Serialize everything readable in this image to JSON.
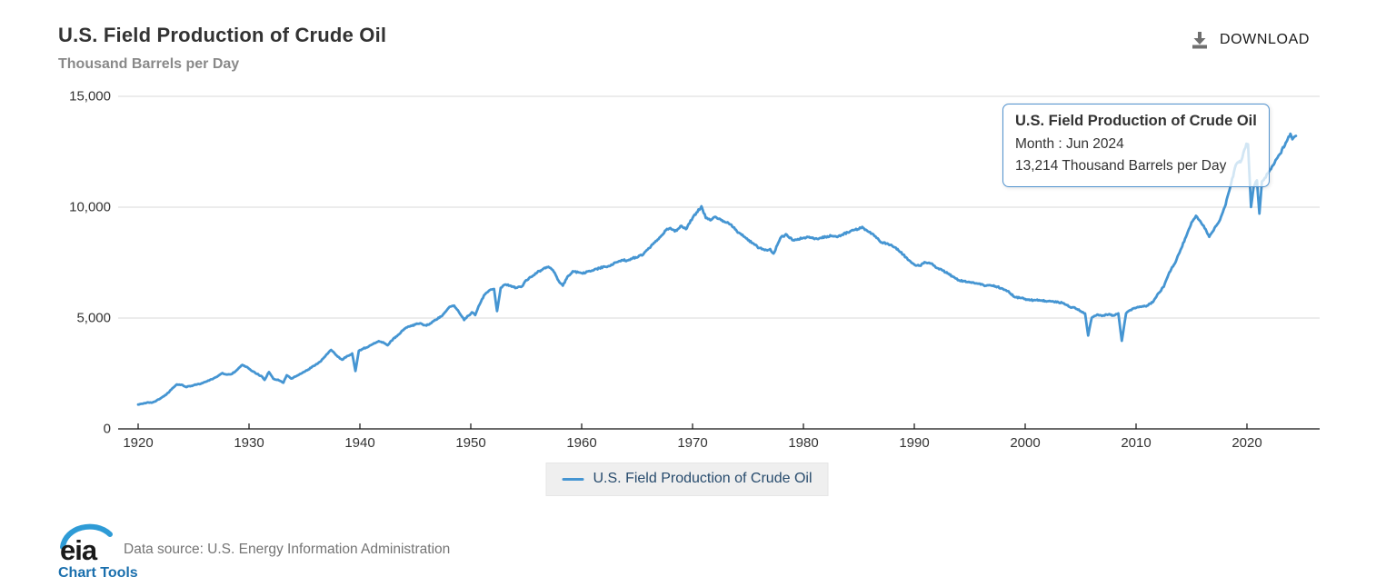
{
  "header": {
    "title": "U.S. Field Production of Crude Oil",
    "subtitle": "Thousand Barrels per Day",
    "download_label": "DOWNLOAD"
  },
  "tooltip": {
    "title": "U.S. Field Production of Crude Oil",
    "period_line": "Month : Jun 2024",
    "value_line": "13,214 Thousand Barrels per Day"
  },
  "legend": {
    "label": "U.S. Field Production of Crude Oil"
  },
  "footer": {
    "logo_text": "eia",
    "data_source": "Data source: U.S. Energy Information Administration",
    "chart_tools_label": "Chart Tools"
  },
  "colors": {
    "line": "#4595d2",
    "tooltip_border": "#5192ce",
    "grid": "#d8d8d8",
    "axis": "#111111",
    "legend_text": "#274b6d",
    "download_icon": "#6f6f6f",
    "logo_swoosh": "#2e9bd6"
  },
  "chart_data": {
    "type": "line",
    "title": "U.S. Field Production of Crude Oil",
    "xlabel": "",
    "ylabel": "Thousand Barrels per Day",
    "xlim": [
      1919.5,
      2026.5
    ],
    "ylim": [
      0,
      15000
    ],
    "grid": "horizontal",
    "legend_position": "bottom-center",
    "y_ticks": [
      {
        "value": 15000,
        "label": "15,000"
      },
      {
        "value": 10000,
        "label": "10,000"
      },
      {
        "value": 5000,
        "label": "5,000"
      },
      {
        "value": 0,
        "label": "0"
      }
    ],
    "x_ticks": [
      {
        "value": 1920,
        "label": "1920"
      },
      {
        "value": 1930,
        "label": "1930"
      },
      {
        "value": 1940,
        "label": "1940"
      },
      {
        "value": 1950,
        "label": "1950"
      },
      {
        "value": 1960,
        "label": "1960"
      },
      {
        "value": 1970,
        "label": "1970"
      },
      {
        "value": 1980,
        "label": "1980"
      },
      {
        "value": 1990,
        "label": "1990"
      },
      {
        "value": 2000,
        "label": "2000"
      },
      {
        "value": 2010,
        "label": "2010"
      },
      {
        "value": 2020,
        "label": "2020"
      }
    ],
    "series": [
      {
        "name": "U.S. Field Production of Crude Oil",
        "unit": "Thousand Barrels per Day",
        "frequency": "monthly",
        "last_point_label": "Jun 2024",
        "last_point_value": 13214,
        "points": [
          [
            1920.0,
            1100
          ],
          [
            1920.4,
            1130
          ],
          [
            1920.8,
            1190
          ],
          [
            1921.2,
            1180
          ],
          [
            1921.6,
            1250
          ],
          [
            1922.0,
            1370
          ],
          [
            1922.5,
            1530
          ],
          [
            1923.0,
            1780
          ],
          [
            1923.5,
            2010
          ],
          [
            1923.9,
            1990
          ],
          [
            1924.3,
            1890
          ],
          [
            1924.8,
            1940
          ],
          [
            1925.3,
            2000
          ],
          [
            1925.8,
            2060
          ],
          [
            1926.3,
            2180
          ],
          [
            1926.8,
            2280
          ],
          [
            1927.2,
            2380
          ],
          [
            1927.6,
            2520
          ],
          [
            1928.0,
            2450
          ],
          [
            1928.5,
            2490
          ],
          [
            1929.0,
            2700
          ],
          [
            1929.4,
            2890
          ],
          [
            1929.9,
            2760
          ],
          [
            1930.3,
            2600
          ],
          [
            1930.7,
            2480
          ],
          [
            1931.1,
            2390
          ],
          [
            1931.4,
            2210
          ],
          [
            1931.8,
            2560
          ],
          [
            1932.2,
            2260
          ],
          [
            1932.7,
            2190
          ],
          [
            1933.1,
            2080
          ],
          [
            1933.4,
            2420
          ],
          [
            1933.8,
            2270
          ],
          [
            1934.2,
            2360
          ],
          [
            1934.7,
            2490
          ],
          [
            1935.1,
            2610
          ],
          [
            1935.6,
            2760
          ],
          [
            1936.0,
            2890
          ],
          [
            1936.5,
            3060
          ],
          [
            1937.0,
            3360
          ],
          [
            1937.4,
            3560
          ],
          [
            1938.0,
            3260
          ],
          [
            1938.4,
            3120
          ],
          [
            1938.9,
            3290
          ],
          [
            1939.3,
            3400
          ],
          [
            1939.6,
            2610
          ],
          [
            1939.9,
            3520
          ],
          [
            1940.3,
            3620
          ],
          [
            1940.8,
            3720
          ],
          [
            1941.2,
            3830
          ],
          [
            1941.7,
            3960
          ],
          [
            1942.1,
            3910
          ],
          [
            1942.5,
            3770
          ],
          [
            1943.0,
            4060
          ],
          [
            1943.5,
            4260
          ],
          [
            1944.0,
            4510
          ],
          [
            1944.5,
            4620
          ],
          [
            1945.0,
            4710
          ],
          [
            1945.4,
            4760
          ],
          [
            1946.0,
            4660
          ],
          [
            1946.5,
            4810
          ],
          [
            1947.0,
            4960
          ],
          [
            1947.5,
            5160
          ],
          [
            1948.0,
            5460
          ],
          [
            1948.5,
            5560
          ],
          [
            1949.0,
            5210
          ],
          [
            1949.4,
            4910
          ],
          [
            1949.8,
            5110
          ],
          [
            1950.1,
            5260
          ],
          [
            1950.4,
            5130
          ],
          [
            1950.8,
            5620
          ],
          [
            1951.2,
            6030
          ],
          [
            1951.7,
            6260
          ],
          [
            1952.1,
            6310
          ],
          [
            1952.37,
            5310
          ],
          [
            1952.7,
            6360
          ],
          [
            1953.1,
            6510
          ],
          [
            1953.6,
            6460
          ],
          [
            1954.1,
            6360
          ],
          [
            1954.6,
            6420
          ],
          [
            1955.0,
            6710
          ],
          [
            1955.5,
            6860
          ],
          [
            1956.0,
            7060
          ],
          [
            1956.5,
            7210
          ],
          [
            1957.0,
            7310
          ],
          [
            1957.4,
            7160
          ],
          [
            1958.0,
            6610
          ],
          [
            1958.3,
            6460
          ],
          [
            1958.8,
            6910
          ],
          [
            1959.2,
            7110
          ],
          [
            1959.7,
            7060
          ],
          [
            1960.1,
            7010
          ],
          [
            1960.6,
            7110
          ],
          [
            1961.1,
            7160
          ],
          [
            1961.6,
            7260
          ],
          [
            1962.1,
            7310
          ],
          [
            1962.6,
            7360
          ],
          [
            1963.1,
            7510
          ],
          [
            1963.6,
            7610
          ],
          [
            1964.1,
            7600
          ],
          [
            1964.6,
            7700
          ],
          [
            1965.1,
            7760
          ],
          [
            1965.6,
            7900
          ],
          [
            1966.1,
            8160
          ],
          [
            1966.6,
            8410
          ],
          [
            1967.1,
            8660
          ],
          [
            1967.6,
            8960
          ],
          [
            1968.0,
            9060
          ],
          [
            1968.4,
            8910
          ],
          [
            1969.0,
            9160
          ],
          [
            1969.4,
            9010
          ],
          [
            1970.0,
            9510
          ],
          [
            1970.8,
            10040
          ],
          [
            1971.2,
            9510
          ],
          [
            1971.6,
            9410
          ],
          [
            1972.0,
            9560
          ],
          [
            1972.5,
            9460
          ],
          [
            1973.0,
            9310
          ],
          [
            1973.5,
            9210
          ],
          [
            1974.0,
            8910
          ],
          [
            1974.5,
            8760
          ],
          [
            1975.0,
            8510
          ],
          [
            1975.5,
            8360
          ],
          [
            1976.0,
            8160
          ],
          [
            1976.5,
            8060
          ],
          [
            1977.0,
            8110
          ],
          [
            1977.3,
            7910
          ],
          [
            1978.0,
            8660
          ],
          [
            1978.5,
            8760
          ],
          [
            1979.0,
            8510
          ],
          [
            1979.5,
            8560
          ],
          [
            1980.0,
            8610
          ],
          [
            1980.5,
            8660
          ],
          [
            1981.0,
            8560
          ],
          [
            1981.5,
            8610
          ],
          [
            1982.0,
            8660
          ],
          [
            1982.5,
            8710
          ],
          [
            1983.0,
            8660
          ],
          [
            1983.5,
            8760
          ],
          [
            1984.0,
            8860
          ],
          [
            1984.5,
            8960
          ],
          [
            1985.0,
            9010
          ],
          [
            1985.3,
            9110
          ],
          [
            1985.8,
            8910
          ],
          [
            1986.2,
            8810
          ],
          [
            1986.6,
            8610
          ],
          [
            1987.0,
            8410
          ],
          [
            1987.5,
            8360
          ],
          [
            1988.0,
            8260
          ],
          [
            1988.5,
            8110
          ],
          [
            1989.0,
            7860
          ],
          [
            1989.5,
            7610
          ],
          [
            1990.0,
            7410
          ],
          [
            1990.5,
            7360
          ],
          [
            1991.0,
            7510
          ],
          [
            1991.5,
            7460
          ],
          [
            1992.0,
            7260
          ],
          [
            1992.5,
            7160
          ],
          [
            1993.0,
            7010
          ],
          [
            1993.5,
            6860
          ],
          [
            1994.0,
            6710
          ],
          [
            1994.5,
            6660
          ],
          [
            1995.0,
            6610
          ],
          [
            1995.5,
            6560
          ],
          [
            1996.0,
            6510
          ],
          [
            1996.5,
            6460
          ],
          [
            1997.0,
            6460
          ],
          [
            1997.5,
            6410
          ],
          [
            1998.0,
            6310
          ],
          [
            1998.5,
            6210
          ],
          [
            1999.0,
            5960
          ],
          [
            1999.5,
            5910
          ],
          [
            2000.0,
            5860
          ],
          [
            2000.5,
            5810
          ],
          [
            2001.0,
            5810
          ],
          [
            2001.5,
            5790
          ],
          [
            2002.0,
            5760
          ],
          [
            2002.5,
            5760
          ],
          [
            2003.0,
            5710
          ],
          [
            2003.5,
            5660
          ],
          [
            2004.0,
            5510
          ],
          [
            2004.5,
            5460
          ],
          [
            2005.0,
            5310
          ],
          [
            2005.4,
            5210
          ],
          [
            2005.68,
            4210
          ],
          [
            2006.0,
            5010
          ],
          [
            2006.5,
            5160
          ],
          [
            2007.0,
            5110
          ],
          [
            2007.5,
            5160
          ],
          [
            2008.0,
            5110
          ],
          [
            2008.4,
            5210
          ],
          [
            2008.71,
            3970
          ],
          [
            2009.1,
            5210
          ],
          [
            2009.5,
            5360
          ],
          [
            2010.0,
            5460
          ],
          [
            2010.5,
            5510
          ],
          [
            2011.0,
            5560
          ],
          [
            2011.5,
            5710
          ],
          [
            2012.0,
            6110
          ],
          [
            2012.5,
            6410
          ],
          [
            2013.0,
            7060
          ],
          [
            2013.5,
            7460
          ],
          [
            2014.0,
            8060
          ],
          [
            2014.5,
            8660
          ],
          [
            2015.0,
            9310
          ],
          [
            2015.4,
            9610
          ],
          [
            2015.8,
            9360
          ],
          [
            2016.1,
            9160
          ],
          [
            2016.6,
            8660
          ],
          [
            2017.0,
            8960
          ],
          [
            2017.5,
            9360
          ],
          [
            2018.0,
            10010
          ],
          [
            2018.5,
            10910
          ],
          [
            2019.0,
            11910
          ],
          [
            2019.5,
            12110
          ],
          [
            2019.95,
            12860
          ],
          [
            2020.1,
            12840
          ],
          [
            2020.37,
            10010
          ],
          [
            2020.6,
            10910
          ],
          [
            2020.9,
            11210
          ],
          [
            2021.12,
            9710
          ],
          [
            2021.35,
            11160
          ],
          [
            2021.6,
            11310
          ],
          [
            2022.0,
            11610
          ],
          [
            2022.5,
            12010
          ],
          [
            2023.0,
            12410
          ],
          [
            2023.5,
            12910
          ],
          [
            2023.92,
            13310
          ],
          [
            2024.1,
            13060
          ],
          [
            2024.25,
            13160
          ],
          [
            2024.42,
            13214
          ]
        ]
      }
    ]
  }
}
